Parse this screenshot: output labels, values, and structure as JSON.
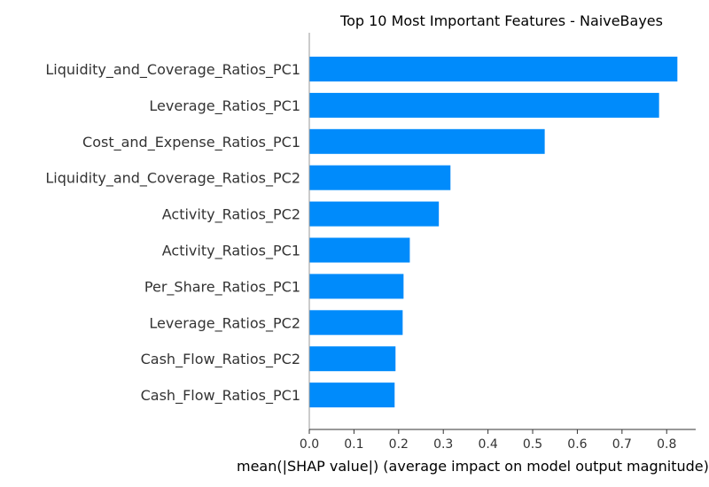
{
  "chart_data": {
    "type": "bar",
    "orientation": "horizontal",
    "title": "Top 10 Most Important Features - NaiveBayes",
    "xlabel": "mean(|SHAP value|) (average impact on model output magnitude)",
    "ylabel": "",
    "categories": [
      "Liquidity_and_Coverage_Ratios_PC1",
      "Leverage_Ratios_PC1",
      "Cost_and_Expense_Ratios_PC1",
      "Liquidity_and_Coverage_Ratios_PC2",
      "Activity_Ratios_PC2",
      "Activity_Ratios_PC1",
      "Per_Share_Ratios_PC1",
      "Leverage_Ratios_PC2",
      "Cash_Flow_Ratios_PC2",
      "Cash_Flow_Ratios_PC1"
    ],
    "values": [
      0.824,
      0.783,
      0.527,
      0.316,
      0.29,
      0.225,
      0.211,
      0.209,
      0.193,
      0.191
    ],
    "xlim": [
      0,
      0.865
    ],
    "xticks": [
      "0.0",
      "0.1",
      "0.2",
      "0.3",
      "0.4",
      "0.5",
      "0.6",
      "0.7",
      "0.8"
    ],
    "bar_color": "#008bfb",
    "grid": false,
    "legend": "none"
  }
}
